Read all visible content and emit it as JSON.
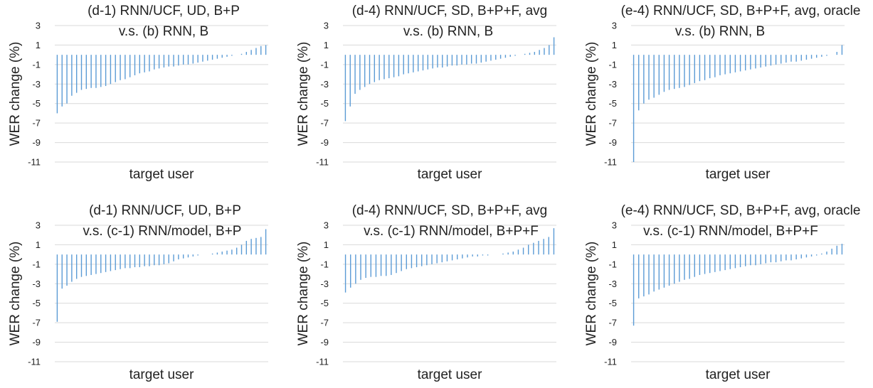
{
  "figure": {
    "bar_color": "#5b9bd5",
    "grid_color": "#d9d9d9",
    "text_color": "#222222"
  },
  "chart_data": [
    {
      "type": "bar",
      "title": "(d-1) RNN/UCF, UD, B+P",
      "subtitle": "v.s. (b) RNN, B",
      "xlabel": "target user",
      "ylabel": "WER change (%)",
      "ylim": [
        -11,
        3
      ],
      "yticks": [
        3,
        1,
        -1,
        -3,
        -5,
        -7,
        -9,
        -11
      ],
      "grid": true,
      "values": [
        -6.0,
        -5.3,
        -5.0,
        -4.2,
        -3.9,
        -3.6,
        -3.5,
        -3.4,
        -3.4,
        -3.3,
        -3.2,
        -3.0,
        -2.8,
        -2.6,
        -2.5,
        -2.3,
        -2.1,
        -1.9,
        -1.8,
        -1.7,
        -1.5,
        -1.4,
        -1.3,
        -1.2,
        -1.2,
        -1.1,
        -1.0,
        -1.0,
        -0.9,
        -0.8,
        -0.7,
        -0.6,
        -0.5,
        -0.4,
        -0.3,
        -0.2,
        -0.1,
        0.0,
        0.1,
        0.3,
        0.5,
        0.7,
        0.9,
        1.0
      ]
    },
    {
      "type": "bar",
      "title": "(d-4) RNN/UCF, SD, B+P+F, avg",
      "subtitle": "v.s. (b) RNN, B",
      "xlabel": "target user",
      "ylabel": "WER change (%)",
      "ylim": [
        -11,
        3
      ],
      "yticks": [
        3,
        1,
        -1,
        -3,
        -5,
        -7,
        -9,
        -11
      ],
      "grid": true,
      "values": [
        -6.8,
        -5.3,
        -4.0,
        -3.6,
        -3.3,
        -3.0,
        -2.8,
        -2.6,
        -2.5,
        -2.4,
        -2.3,
        -2.2,
        -2.0,
        -1.9,
        -1.8,
        -1.7,
        -1.6,
        -1.5,
        -1.4,
        -1.3,
        -1.3,
        -1.2,
        -1.1,
        -1.1,
        -1.0,
        -1.0,
        -0.9,
        -0.9,
        -0.8,
        -0.7,
        -0.6,
        -0.5,
        -0.4,
        -0.3,
        -0.2,
        -0.1,
        0.0,
        0.1,
        0.2,
        0.3,
        0.5,
        0.7,
        1.0,
        1.8
      ]
    },
    {
      "type": "bar",
      "title": "(e-4) RNN/UCF, SD, B+P+F, avg, oracle",
      "subtitle": "v.s. (b) RNN, B",
      "xlabel": "target user",
      "ylabel": "WER change (%)",
      "ylim": [
        -11,
        3
      ],
      "yticks": [
        3,
        1,
        -1,
        -3,
        -5,
        -7,
        -9,
        -11
      ],
      "grid": true,
      "values": [
        -11.0,
        -5.7,
        -5.0,
        -4.6,
        -4.4,
        -4.1,
        -3.8,
        -3.6,
        -3.5,
        -3.4,
        -3.3,
        -3.1,
        -2.9,
        -2.7,
        -2.6,
        -2.4,
        -2.3,
        -2.1,
        -2.0,
        -1.9,
        -1.8,
        -1.7,
        -1.6,
        -1.5,
        -1.4,
        -1.3,
        -1.2,
        -1.1,
        -1.0,
        -0.9,
        -0.8,
        -0.7,
        -0.7,
        -0.6,
        -0.5,
        -0.4,
        -0.3,
        -0.2,
        -0.1,
        0.0,
        0.3,
        1.0
      ]
    },
    {
      "type": "bar",
      "title": "(d-1) RNN/UCF, UD, B+P",
      "subtitle": "v.s. (c-1) RNN/model, B+P",
      "xlabel": "target user",
      "ylabel": "WER change (%)",
      "ylim": [
        -11,
        3
      ],
      "yticks": [
        3,
        1,
        -1,
        -3,
        -5,
        -7,
        -9,
        -11
      ],
      "grid": true,
      "values": [
        -6.9,
        -3.5,
        -3.2,
        -2.8,
        -2.5,
        -2.3,
        -2.2,
        -2.1,
        -2.0,
        -1.9,
        -1.8,
        -1.7,
        -1.6,
        -1.5,
        -1.4,
        -1.4,
        -1.3,
        -1.3,
        -1.2,
        -1.2,
        -1.1,
        -1.1,
        -1.0,
        -0.9,
        -0.7,
        -0.5,
        -0.4,
        -0.3,
        -0.2,
        -0.1,
        0.0,
        0.0,
        0.1,
        0.2,
        0.3,
        0.4,
        0.5,
        0.7,
        1.0,
        1.4,
        1.6,
        1.7,
        1.8,
        2.6
      ]
    },
    {
      "type": "bar",
      "title": "(d-4) RNN/UCF, SD, B+P+F, avg",
      "subtitle": "v.s. (c-1) RNN/model, B+P+F",
      "xlabel": "target user",
      "ylabel": "WER change (%)",
      "ylim": [
        -11,
        3
      ],
      "yticks": [
        3,
        1,
        -1,
        -3,
        -5,
        -7,
        -9,
        -11
      ],
      "grid": true,
      "values": [
        -3.9,
        -3.4,
        -3.0,
        -2.6,
        -2.4,
        -2.3,
        -2.3,
        -2.2,
        -2.2,
        -2.1,
        -1.9,
        -1.7,
        -1.5,
        -1.4,
        -1.3,
        -1.2,
        -1.1,
        -1.0,
        -0.9,
        -0.8,
        -0.7,
        -0.6,
        -0.5,
        -0.4,
        -0.3,
        -0.2,
        -0.2,
        -0.1,
        -0.1,
        0.0,
        0.0,
        0.1,
        0.2,
        0.3,
        0.5,
        0.7,
        1.0,
        1.2,
        1.4,
        1.6,
        1.8,
        2.7
      ]
    },
    {
      "type": "bar",
      "title": "(e-4) RNN/UCF, SD, B+P+F, avg, oracle",
      "subtitle": "v.s. (c-1) RNN/model, B+P+F",
      "xlabel": "target user",
      "ylabel": "WER change (%)",
      "ylim": [
        -11,
        3
      ],
      "yticks": [
        3,
        1,
        -1,
        -3,
        -5,
        -7,
        -9,
        -11
      ],
      "grid": true,
      "values": [
        -7.3,
        -4.5,
        -4.3,
        -4.1,
        -3.8,
        -3.6,
        -3.4,
        -3.2,
        -3.0,
        -2.8,
        -2.6,
        -2.5,
        -2.3,
        -2.1,
        -2.0,
        -1.9,
        -1.8,
        -1.7,
        -1.6,
        -1.5,
        -1.4,
        -1.3,
        -1.2,
        -1.1,
        -1.1,
        -1.0,
        -0.9,
        -0.8,
        -0.8,
        -0.7,
        -0.6,
        -0.6,
        -0.5,
        -0.4,
        -0.3,
        -0.2,
        -0.1,
        0.1,
        0.3,
        0.6,
        0.9,
        1.1
      ]
    }
  ]
}
